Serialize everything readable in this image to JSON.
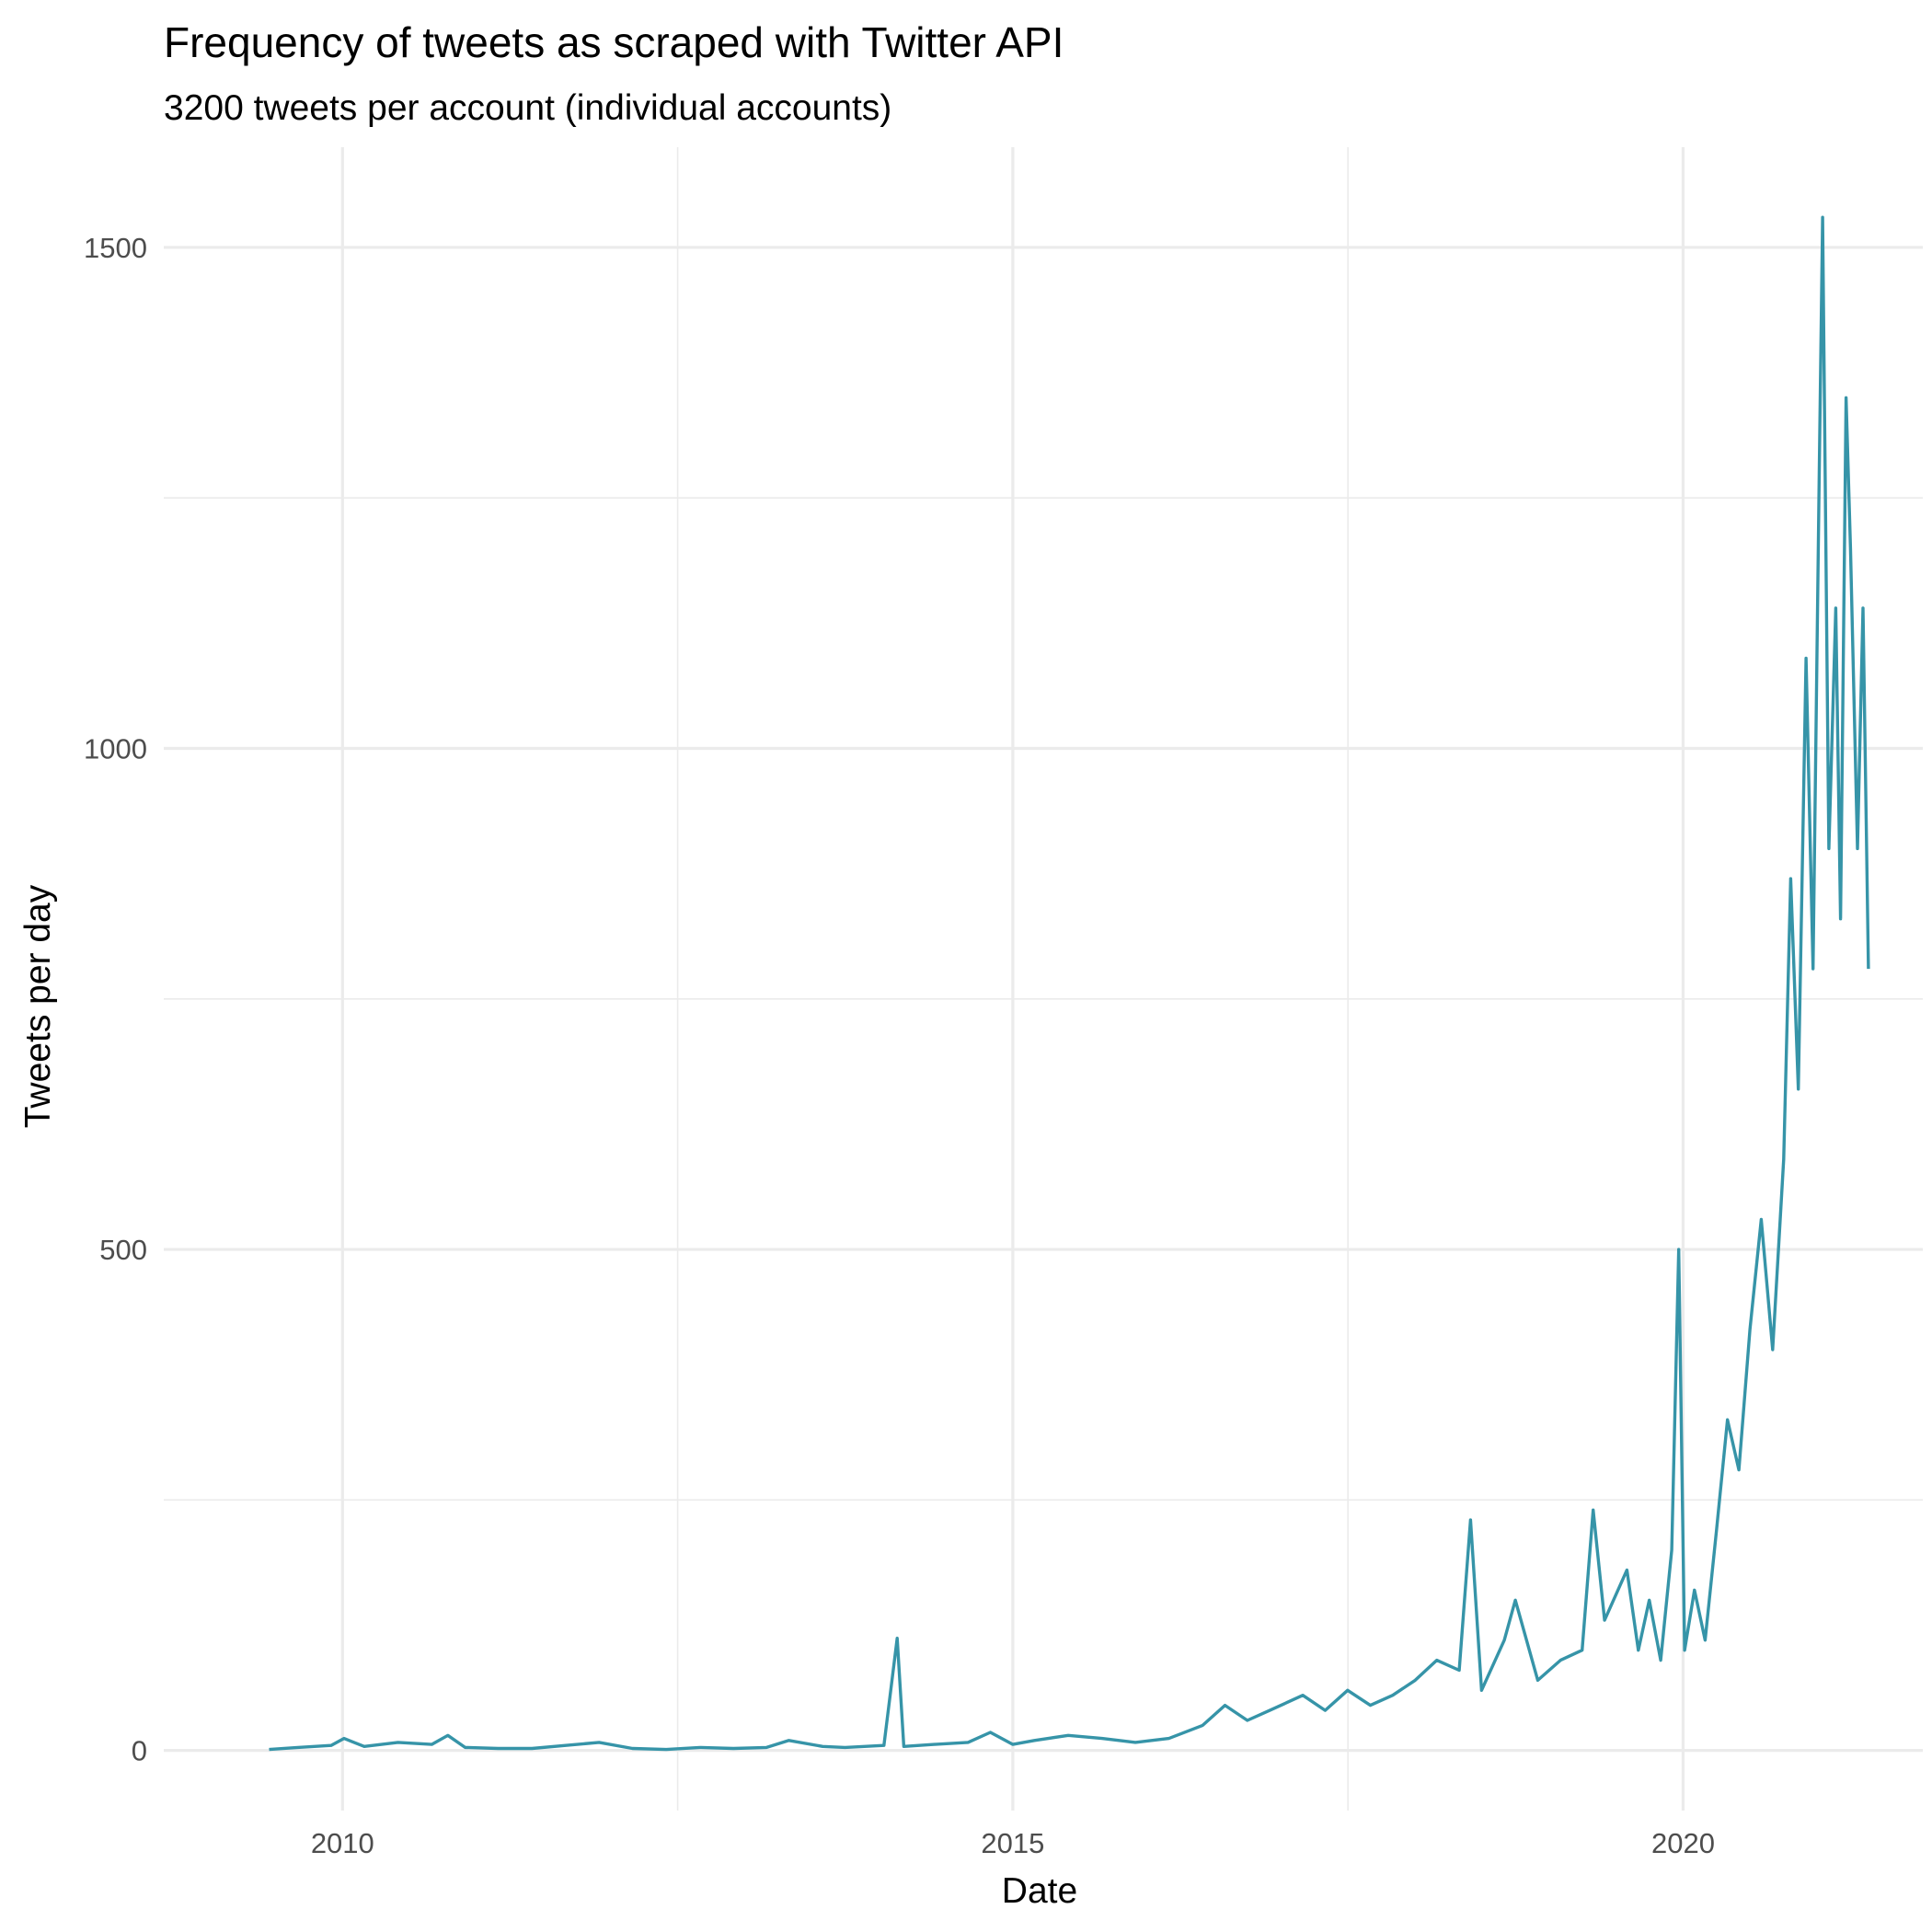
{
  "chart_data": {
    "type": "line",
    "title": "Frequency of tweets as scraped with Twitter API",
    "subtitle": "3200 tweets per account (individual accounts)",
    "xlabel": "Date",
    "ylabel": "Tweets per day",
    "x_axis_type": "date",
    "xlim": [
      "2008-09-01",
      "2021-10-15"
    ],
    "ylim": [
      -60,
      1600
    ],
    "x_ticks": [
      {
        "value": "2010-01-01",
        "label": "2010"
      },
      {
        "value": "2015-01-01",
        "label": "2015"
      },
      {
        "value": "2020-01-01",
        "label": "2020"
      }
    ],
    "y_ticks": [
      0,
      500,
      1000,
      1500
    ],
    "grid": true,
    "legend": "none",
    "series": [
      {
        "color": "#3694a8",
        "points": [
          [
            "2009-06-15",
            1
          ],
          [
            "2009-09-01",
            3
          ],
          [
            "2009-12-01",
            5
          ],
          [
            "2010-01-05",
            12
          ],
          [
            "2010-03-01",
            4
          ],
          [
            "2010-06-01",
            8
          ],
          [
            "2010-09-01",
            6
          ],
          [
            "2010-10-15",
            15
          ],
          [
            "2010-12-01",
            3
          ],
          [
            "2011-03-01",
            2
          ],
          [
            "2011-06-01",
            2
          ],
          [
            "2011-09-01",
            5
          ],
          [
            "2011-12-01",
            8
          ],
          [
            "2012-03-01",
            2
          ],
          [
            "2012-06-01",
            1
          ],
          [
            "2012-09-01",
            3
          ],
          [
            "2012-12-01",
            2
          ],
          [
            "2013-03-01",
            3
          ],
          [
            "2013-05-01",
            10
          ],
          [
            "2013-08-01",
            4
          ],
          [
            "2013-10-01",
            3
          ],
          [
            "2014-01-15",
            5
          ],
          [
            "2014-02-20",
            112
          ],
          [
            "2014-03-10",
            4
          ],
          [
            "2014-06-01",
            6
          ],
          [
            "2014-09-01",
            8
          ],
          [
            "2014-11-01",
            18
          ],
          [
            "2015-01-01",
            6
          ],
          [
            "2015-03-01",
            10
          ],
          [
            "2015-06-01",
            15
          ],
          [
            "2015-09-01",
            12
          ],
          [
            "2015-12-01",
            8
          ],
          [
            "2016-03-01",
            12
          ],
          [
            "2016-06-01",
            25
          ],
          [
            "2016-08-01",
            45
          ],
          [
            "2016-10-01",
            30
          ],
          [
            "2016-12-01",
            40
          ],
          [
            "2017-03-01",
            55
          ],
          [
            "2017-05-01",
            40
          ],
          [
            "2017-07-01",
            60
          ],
          [
            "2017-09-01",
            45
          ],
          [
            "2017-11-01",
            55
          ],
          [
            "2018-01-01",
            70
          ],
          [
            "2018-03-01",
            90
          ],
          [
            "2018-05-01",
            80
          ],
          [
            "2018-06-01",
            230
          ],
          [
            "2018-07-01",
            60
          ],
          [
            "2018-09-01",
            110
          ],
          [
            "2018-10-01",
            150
          ],
          [
            "2018-12-01",
            70
          ],
          [
            "2019-02-01",
            90
          ],
          [
            "2019-04-01",
            100
          ],
          [
            "2019-05-01",
            240
          ],
          [
            "2019-06-01",
            130
          ],
          [
            "2019-08-01",
            180
          ],
          [
            "2019-09-01",
            100
          ],
          [
            "2019-10-01",
            150
          ],
          [
            "2019-11-01",
            90
          ],
          [
            "2019-12-01",
            200
          ],
          [
            "2019-12-20",
            500
          ],
          [
            "2020-01-05",
            100
          ],
          [
            "2020-02-01",
            160
          ],
          [
            "2020-03-01",
            110
          ],
          [
            "2020-04-01",
            220
          ],
          [
            "2020-05-01",
            330
          ],
          [
            "2020-06-01",
            280
          ],
          [
            "2020-07-01",
            420
          ],
          [
            "2020-08-01",
            530
          ],
          [
            "2020-09-01",
            400
          ],
          [
            "2020-10-01",
            590
          ],
          [
            "2020-10-20",
            870
          ],
          [
            "2020-11-10",
            660
          ],
          [
            "2020-12-01",
            1090
          ],
          [
            "2020-12-20",
            780
          ],
          [
            "2021-01-06",
            1280
          ],
          [
            "2021-01-15",
            1530
          ],
          [
            "2021-02-01",
            900
          ],
          [
            "2021-02-20",
            1140
          ],
          [
            "2021-03-05",
            830
          ],
          [
            "2021-03-20",
            1350
          ],
          [
            "2021-04-01",
            1200
          ],
          [
            "2021-04-20",
            900
          ],
          [
            "2021-05-05",
            1140
          ],
          [
            "2021-05-20",
            780
          ]
        ]
      }
    ]
  }
}
